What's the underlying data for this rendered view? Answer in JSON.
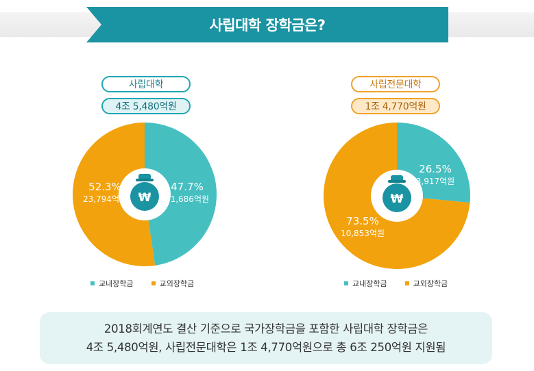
{
  "title": "사립대학 장학금은?",
  "chart_data": [
    {
      "type": "pie",
      "title": "사립대학",
      "total": "4조 5,480억원",
      "slices": [
        {
          "name": "교내장학금",
          "percent": 47.7,
          "value_label": "21,686억원",
          "color": "#46bfc1"
        },
        {
          "name": "교외장학금",
          "percent": 52.3,
          "value_label": "23,794억원",
          "color": "#f2a20d"
        }
      ],
      "percent_labels": [
        "47.7%",
        "52.3%"
      ],
      "legend": [
        "교내장학금",
        "교외장학금"
      ]
    },
    {
      "type": "pie",
      "title": "사립전문대학",
      "total": "1조 4,770억원",
      "slices": [
        {
          "name": "교내장학금",
          "percent": 26.5,
          "value_label": "3,917억원",
          "color": "#46bfc1"
        },
        {
          "name": "교외장학금",
          "percent": 73.5,
          "value_label": "10,853억원",
          "color": "#f2a20d"
        }
      ],
      "percent_labels": [
        "26.5%",
        "73.5%"
      ],
      "legend": [
        "교내장학금",
        "교외장학금"
      ]
    }
  ],
  "icon": "money-bag-won-icon",
  "note": {
    "line1": "2018회계연도 결산 기준으로 국가장학금을 포함한 사립대학 장학금은",
    "line2": "4조 5,480억원, 사립전문대학은 1조 4,770억원으로 총 6조 250억원 지원됨"
  }
}
